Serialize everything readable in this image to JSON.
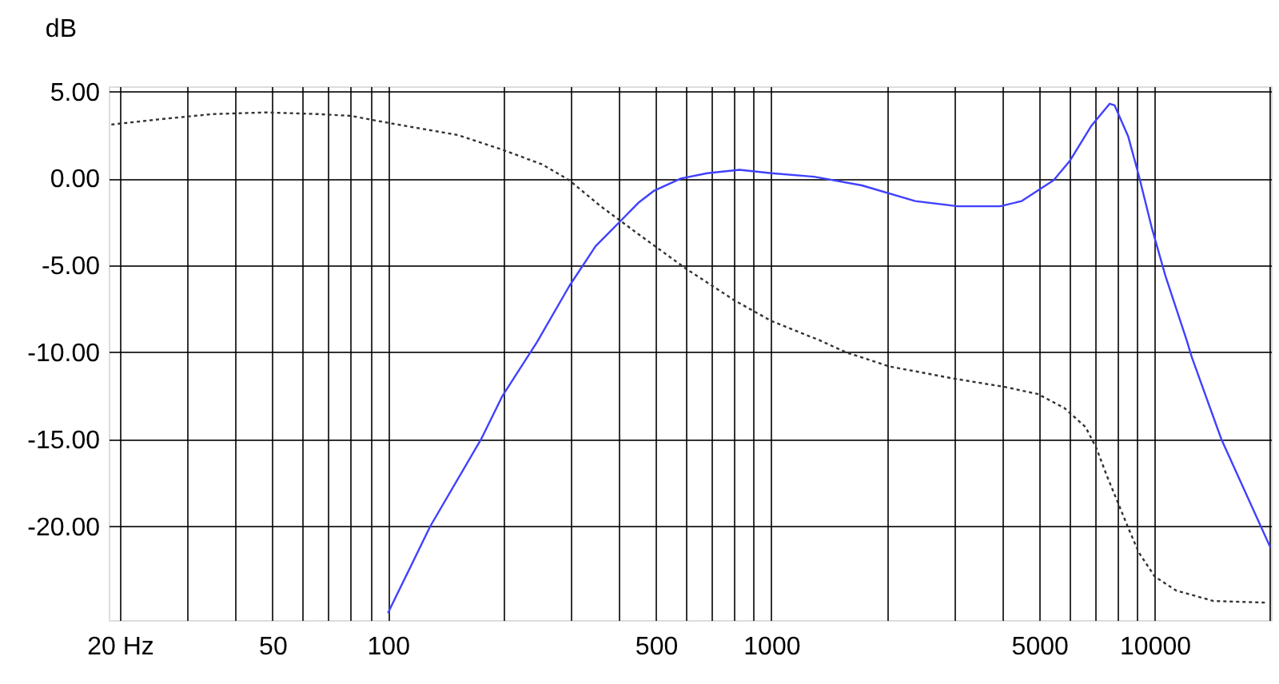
{
  "chart_data": {
    "type": "line",
    "ylabel": "dB",
    "log": "x",
    "grid": true,
    "marker": "none",
    "xlim": [
      18.7,
      20100
    ],
    "ylim": [
      -25.4,
      5.3
    ],
    "xticks": [
      {
        "value": 20,
        "label": "20 Hz"
      },
      {
        "value": 30,
        "label": null
      },
      {
        "value": 40,
        "label": null
      },
      50,
      {
        "value": 60,
        "label": null
      },
      {
        "value": 70,
        "label": null
      },
      {
        "value": 80,
        "label": null
      },
      {
        "value": 90,
        "label": null
      },
      100,
      {
        "value": 200,
        "label": null
      },
      {
        "value": 300,
        "label": null
      },
      {
        "value": 400,
        "label": null
      },
      500,
      {
        "value": 600,
        "label": null
      },
      {
        "value": 700,
        "label": null
      },
      {
        "value": 800,
        "label": null
      },
      {
        "value": 900,
        "label": null
      },
      1000,
      {
        "value": 2000,
        "label": null
      },
      {
        "value": 3000,
        "label": null
      },
      {
        "value": 4000,
        "label": null
      },
      5000,
      {
        "value": 6000,
        "label": null
      },
      {
        "value": 7000,
        "label": null
      },
      {
        "value": 8000,
        "label": null
      },
      {
        "value": 9000,
        "label": null
      },
      10000,
      {
        "value": 20000,
        "label": null
      }
    ],
    "yticks": [
      {
        "value": 5,
        "label": "5.00"
      },
      {
        "value": 0,
        "label": "0.00"
      },
      {
        "value": -5,
        "label": "-5.00"
      },
      {
        "value": -10,
        "label": "-10.00"
      },
      {
        "value": -15,
        "label": "-15.00"
      },
      {
        "value": -20,
        "label": "-20.00"
      }
    ],
    "series": [
      {
        "color": "#4040ff",
        "line_style": "solid",
        "x": [
          100,
          129,
          175,
          199,
          245,
          297,
          348,
          402,
          450,
          495,
          581,
          681,
          826,
          1000,
          1292,
          1722,
          2372,
          3062,
          3954,
          4500,
          5450,
          6000,
          6820,
          7630,
          7860,
          8530,
          9080,
          9840,
          10660,
          12110,
          12500,
          14920,
          20000
        ],
        "values": [
          -25.0,
          -20.0,
          -15.0,
          -12.5,
          -9.4,
          -6.2,
          -3.9,
          -2.5,
          -1.4,
          -0.7,
          0.0,
          0.3,
          0.5,
          0.3,
          0.1,
          -0.4,
          -1.3,
          -1.6,
          -1.6,
          -1.3,
          -0.1,
          1.0,
          3.0,
          4.3,
          4.2,
          2.4,
          0.2,
          -2.9,
          -5.6,
          -9.3,
          -10.3,
          -15.0,
          -21.2
        ]
      },
      {
        "color": "#333333",
        "line_style": "dotted",
        "x": [
          19,
          25.3,
          34.8,
          48,
          66,
          80,
          100,
          152,
          202,
          253,
          297,
          359,
          450,
          600,
          800,
          1000,
          1334,
          1566,
          2021,
          2972,
          4085,
          4955,
          5810,
          6600,
          7040,
          7500,
          8000,
          8530,
          9080,
          10000,
          11370,
          14220,
          19600
        ],
        "values": [
          3.1,
          3.4,
          3.7,
          3.8,
          3.7,
          3.6,
          3.2,
          2.5,
          1.6,
          0.8,
          -0.1,
          -1.6,
          -3.2,
          -5.2,
          -7.0,
          -8.2,
          -9.3,
          -10.0,
          -10.8,
          -11.5,
          -12.0,
          -12.4,
          -13.2,
          -14.3,
          -15.5,
          -17.1,
          -18.6,
          -20.1,
          -21.5,
          -22.9,
          -23.7,
          -24.3,
          -24.4
        ]
      }
    ]
  }
}
